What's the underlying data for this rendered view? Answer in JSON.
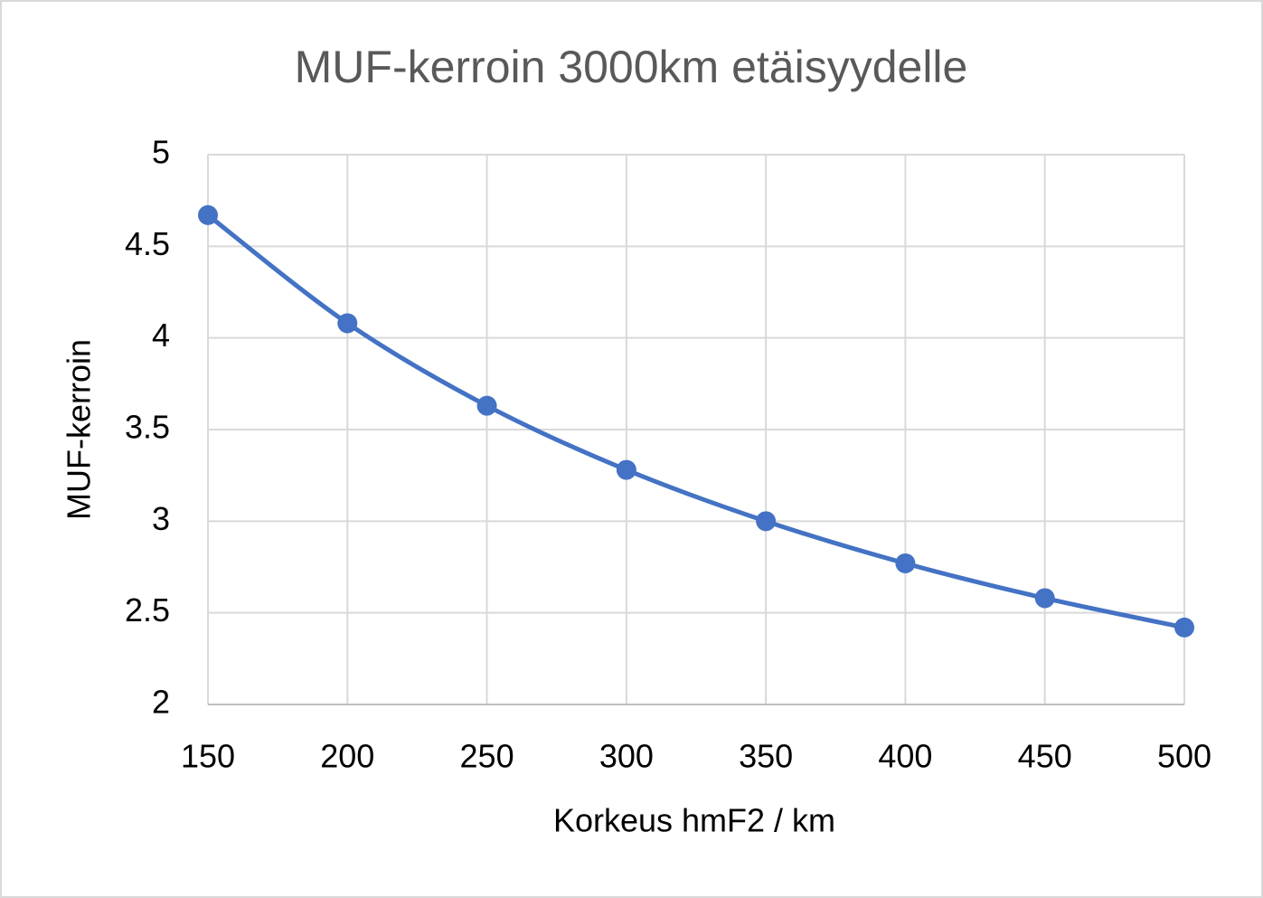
{
  "chart_data": {
    "type": "line",
    "title": "MUF-kerroin 3000km etäisyydelle",
    "xlabel": "Korkeus hmF2 / km",
    "ylabel": "MUF-kerroin",
    "x": [
      150,
      200,
      250,
      300,
      350,
      400,
      450,
      500
    ],
    "series": [
      {
        "name": "MUF-kerroin",
        "color": "#4472c4",
        "values": [
          4.67,
          4.08,
          3.63,
          3.28,
          3.0,
          2.77,
          2.58,
          2.42
        ]
      }
    ],
    "xlim": [
      150,
      500
    ],
    "xticks": [
      150,
      200,
      250,
      300,
      350,
      400,
      450,
      500
    ],
    "ylim": [
      2,
      5
    ],
    "yticks": [
      2,
      2.5,
      3,
      3.5,
      4,
      4.5,
      5
    ],
    "grid": true
  }
}
